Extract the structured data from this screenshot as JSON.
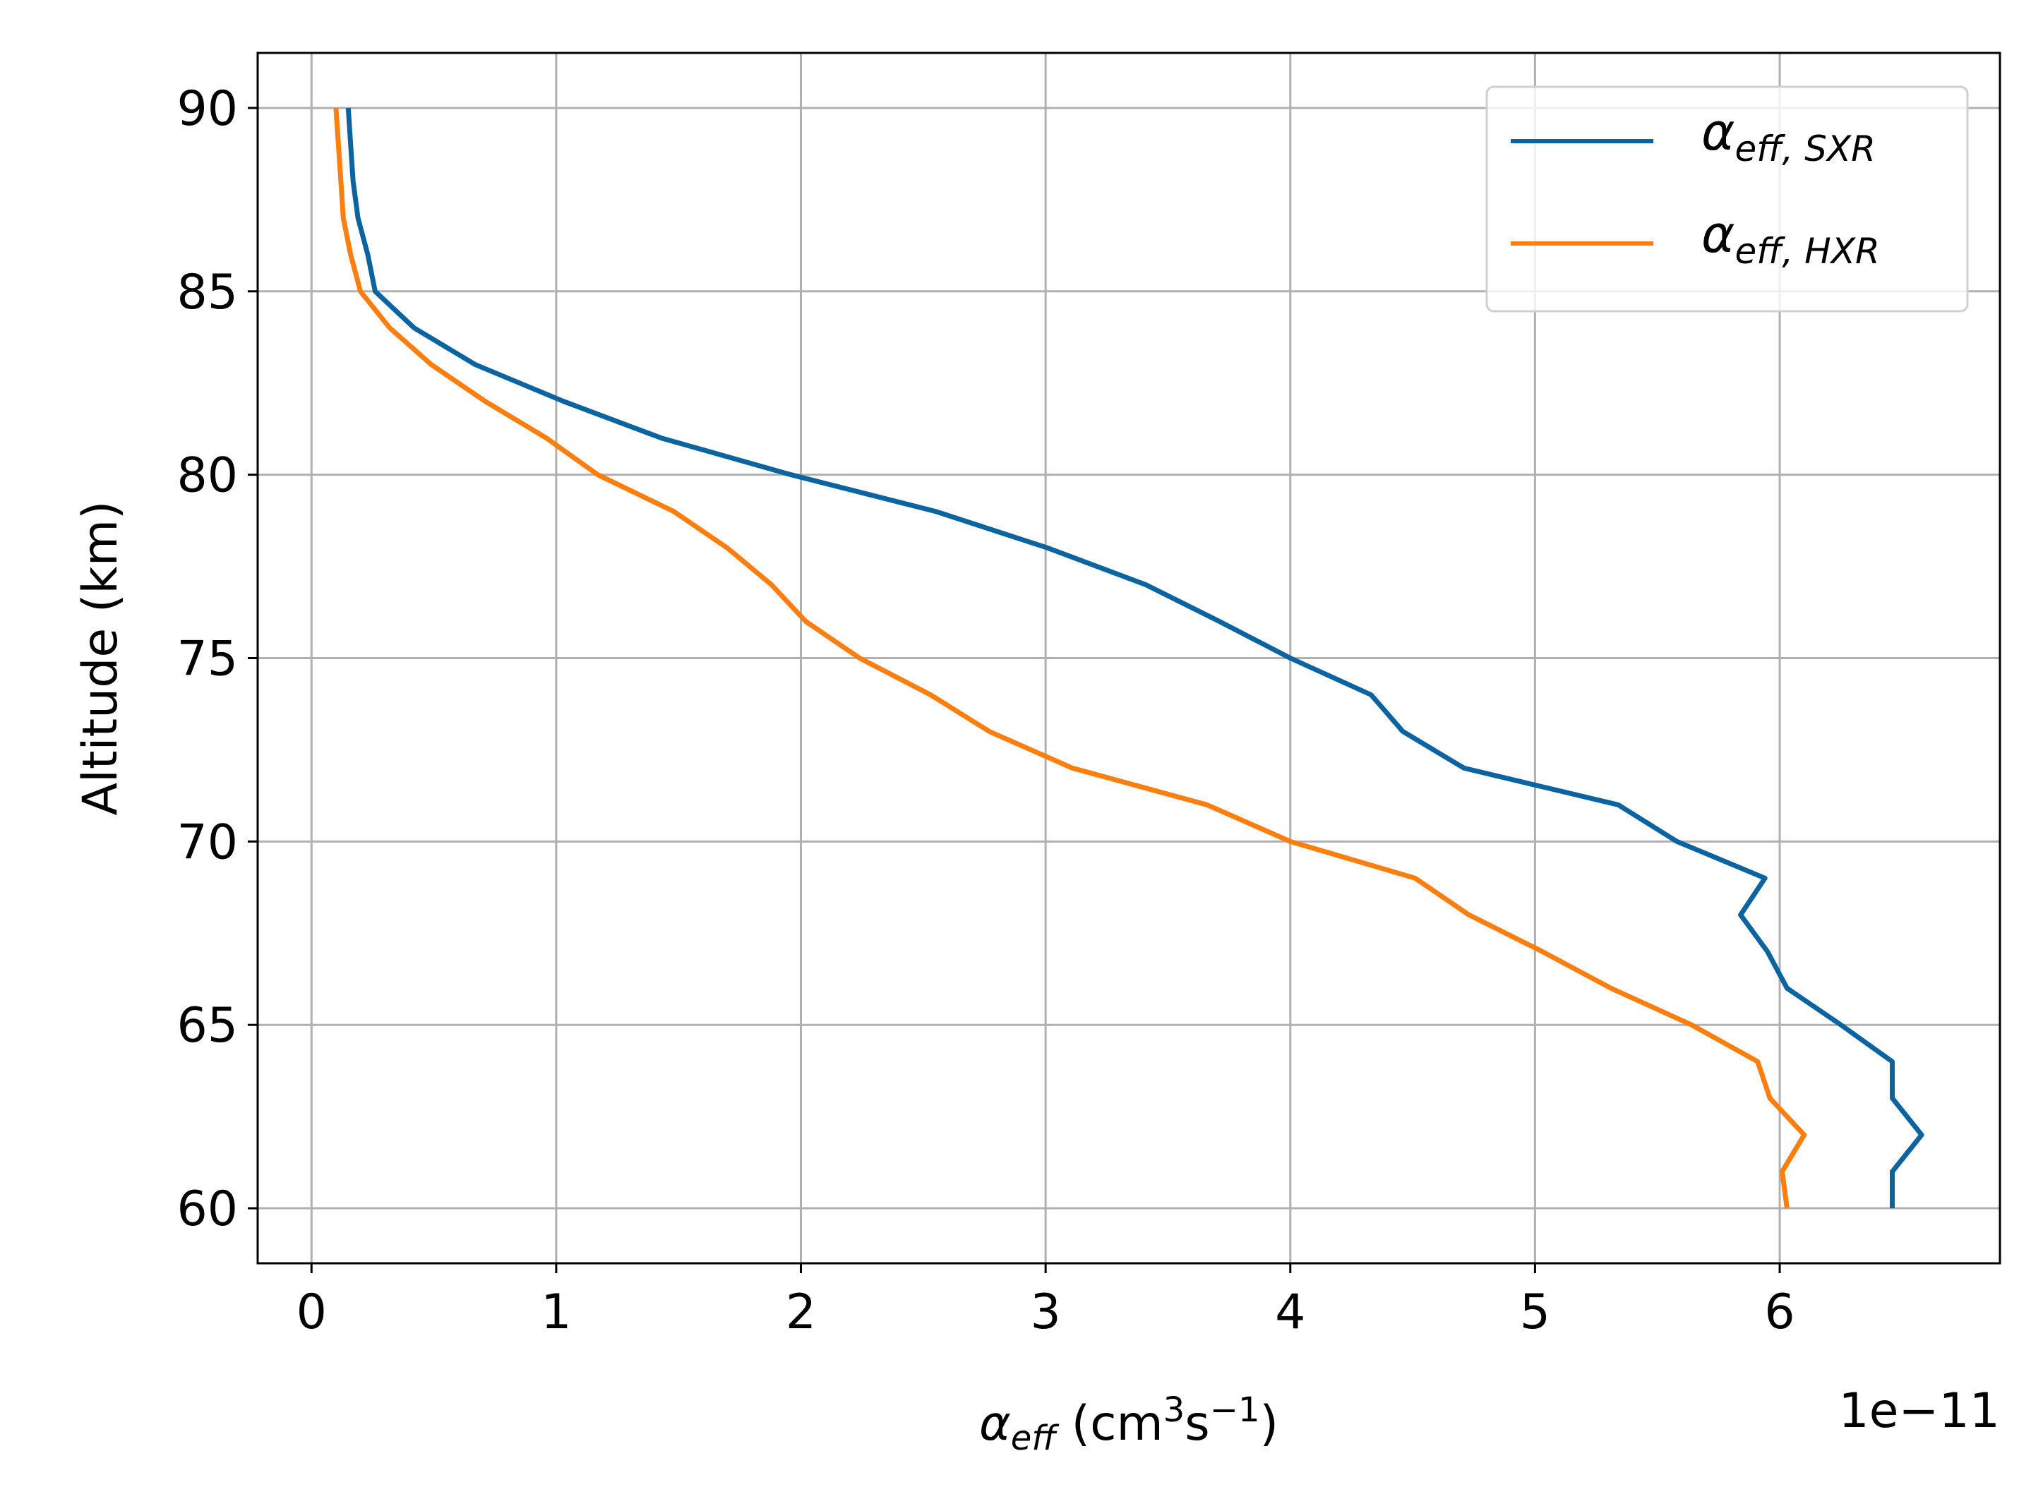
{
  "chart_data": {
    "type": "line",
    "xlabel": {
      "symbol": "α",
      "sub": "eff",
      "unit_open": " (cm",
      "unit_sup": "3",
      "unit_mid": "s",
      "unit_sup2": "−1",
      "unit_close": ")"
    },
    "ylabel": "Altitude (km)",
    "x_offset_label": "1e−11",
    "xlim": [
      -0.22,
      6.9
    ],
    "ylim": [
      58.5,
      91.5
    ],
    "xticks": [
      0,
      1,
      2,
      3,
      4,
      5,
      6
    ],
    "xtick_labels": [
      "0",
      "1",
      "2",
      "3",
      "4",
      "5",
      "6"
    ],
    "yticks": [
      60,
      65,
      70,
      75,
      80,
      85,
      90
    ],
    "ytick_labels": [
      "60",
      "65",
      "70",
      "75",
      "80",
      "85",
      "90"
    ],
    "grid": true,
    "legend_position": "top-right",
    "series": [
      {
        "legend": {
          "symbol": "α",
          "sub": "eff, SXR"
        },
        "color": "#0b64a0",
        "y": [
          60,
          61,
          62,
          63,
          64,
          65,
          66,
          67,
          68,
          69,
          70,
          71,
          72,
          73,
          74,
          75,
          76,
          77,
          78,
          79,
          80,
          81,
          82,
          83,
          84,
          85,
          86,
          87,
          88,
          89,
          90
        ],
        "x": [
          6.46,
          6.46,
          6.58,
          6.46,
          6.46,
          6.25,
          6.03,
          5.95,
          5.84,
          5.94,
          5.58,
          5.34,
          4.71,
          4.46,
          4.33,
          4.0,
          3.71,
          3.41,
          3.01,
          2.55,
          1.96,
          1.43,
          1.03,
          0.67,
          0.42,
          0.26,
          0.23,
          0.19,
          0.17,
          0.16,
          0.15
        ]
      },
      {
        "legend": {
          "symbol": "α",
          "sub": "eff, HXR"
        },
        "color": "#ff7f0e",
        "y": [
          60,
          61,
          62,
          63,
          64,
          65,
          66,
          67,
          68,
          69,
          70,
          71,
          72,
          73,
          74,
          75,
          76,
          77,
          78,
          79,
          80,
          81,
          82,
          83,
          84,
          85,
          86,
          87,
          88,
          89,
          90
        ],
        "x": [
          6.03,
          6.01,
          6.1,
          5.96,
          5.91,
          5.64,
          5.31,
          5.03,
          4.73,
          4.51,
          4.0,
          3.66,
          3.11,
          2.77,
          2.53,
          2.24,
          2.02,
          1.88,
          1.7,
          1.48,
          1.17,
          0.96,
          0.71,
          0.49,
          0.32,
          0.2,
          0.16,
          0.13,
          0.12,
          0.11,
          0.1
        ]
      }
    ]
  }
}
